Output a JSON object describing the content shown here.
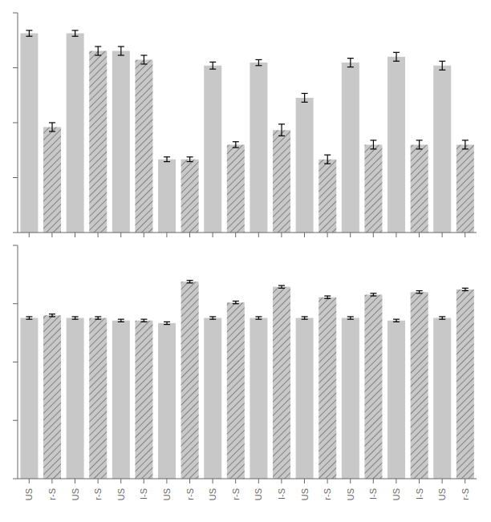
{
  "chart_data": [
    {
      "type": "bar",
      "categories": [
        null,
        null,
        null,
        null,
        null,
        null,
        null,
        null,
        null,
        null,
        null,
        null,
        null,
        null,
        null,
        null,
        null,
        null,
        null,
        null
      ],
      "values": [
        68,
        36,
        68,
        62,
        62,
        59,
        25,
        25,
        57,
        30,
        58,
        35,
        46,
        25,
        58,
        30,
        60,
        30,
        57,
        30
      ],
      "errors": [
        1.0,
        1.5,
        1.0,
        1.5,
        1.5,
        1.5,
        0.8,
        0.8,
        1.2,
        1.0,
        1.0,
        2.0,
        1.5,
        1.5,
        1.5,
        1.5,
        1.5,
        1.5,
        1.5,
        1.5
      ],
      "color": "#c8c8c8",
      "ylim": [
        0,
        75
      ],
      "yticks": [
        0,
        18.75,
        37.5,
        56.25,
        75
      ],
      "tick_labels": false
    },
    {
      "type": "bar",
      "categories": [
        "US",
        "r-S",
        "US",
        "r-S",
        "US",
        "I-S",
        "US",
        "r-S",
        "US",
        "r-S",
        "US",
        "I-S",
        "US",
        "r-S",
        "US",
        "I-S",
        "US",
        "I-S",
        "US",
        "r-S"
      ],
      "values": [
        62,
        63,
        62,
        62,
        61,
        61,
        60,
        76,
        62,
        68,
        62,
        74,
        62,
        70,
        62,
        71,
        61,
        72,
        62,
        73
      ],
      "errors": [
        0.5,
        0.5,
        0.5,
        0.5,
        0.5,
        0.5,
        0.5,
        0.5,
        0.5,
        0.5,
        0.5,
        0.5,
        0.5,
        0.5,
        0.5,
        0.5,
        0.5,
        0.5,
        0.5,
        0.5
      ],
      "color": "#c8c8c8",
      "ylim": [
        0,
        90
      ],
      "yticks": [
        0,
        22.5,
        45,
        67.5,
        90
      ],
      "tick_labels": "x"
    }
  ]
}
